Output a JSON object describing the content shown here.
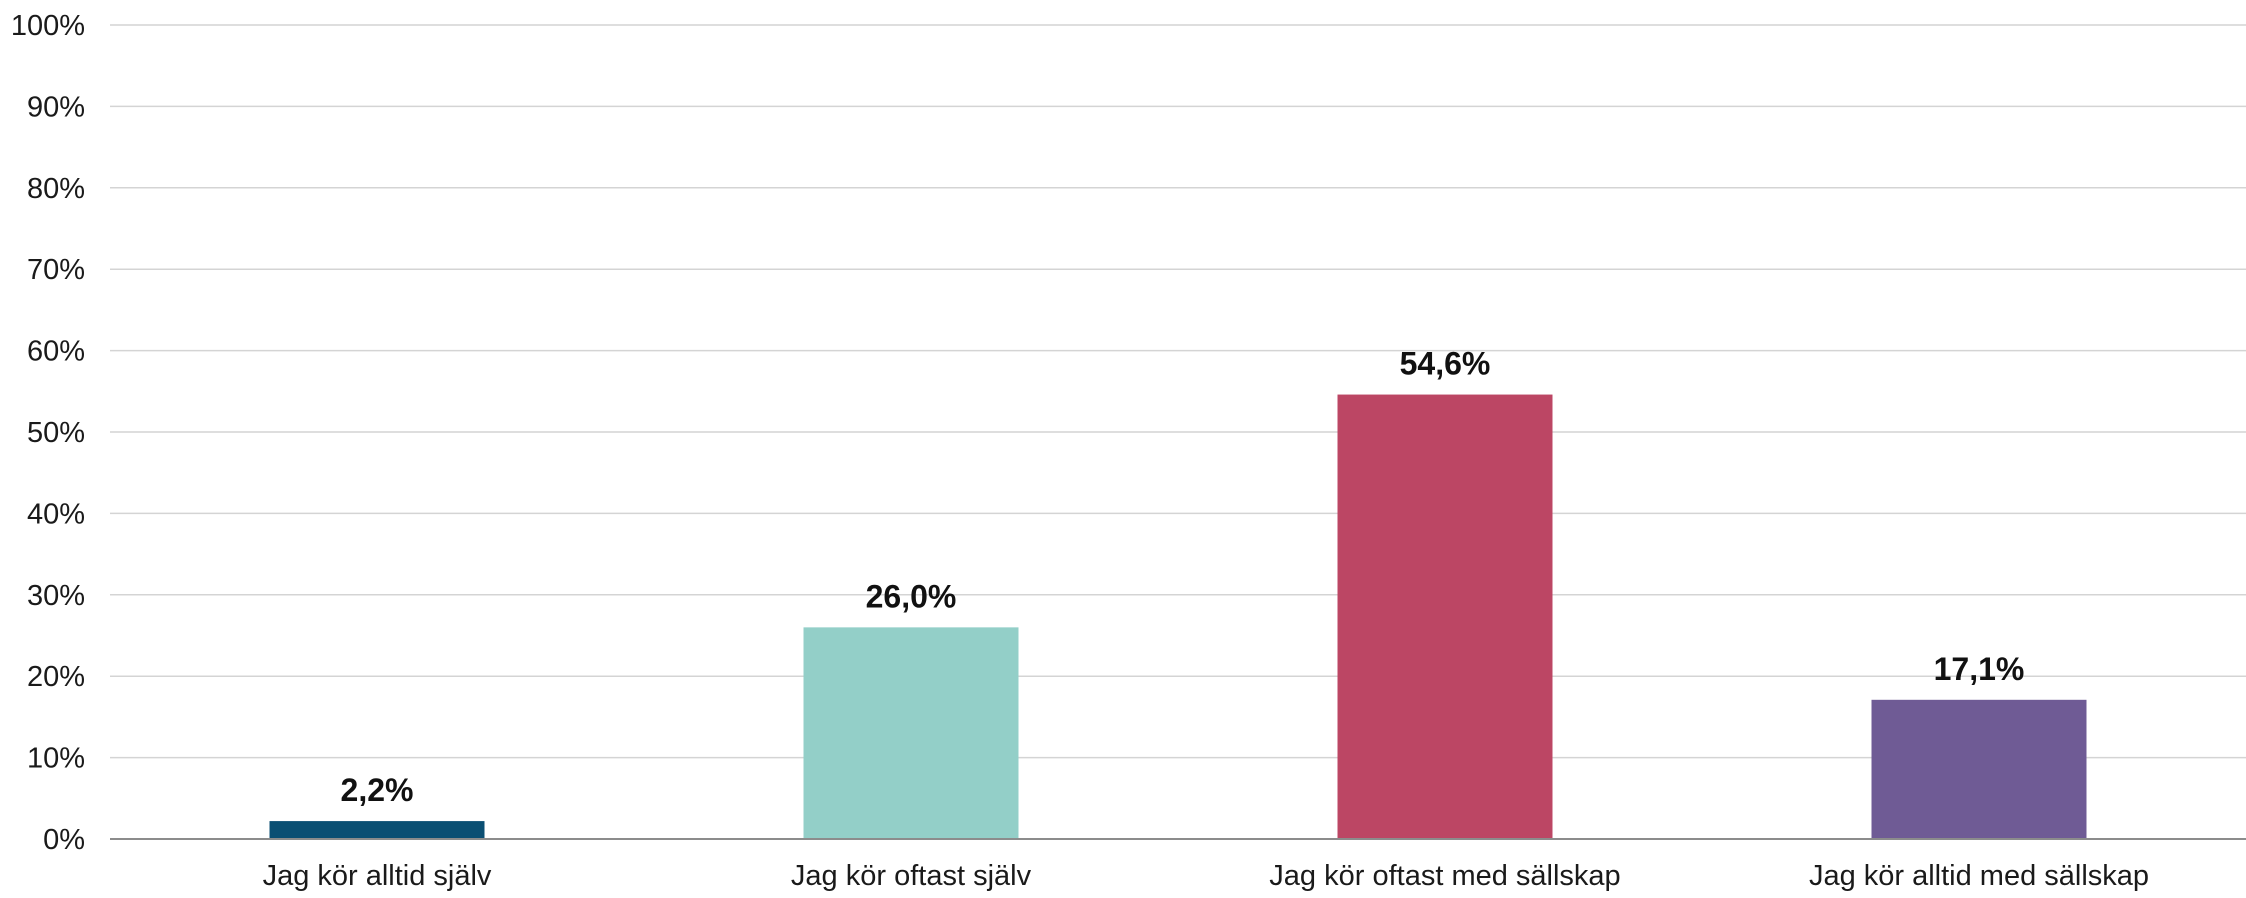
{
  "chart_data": {
    "type": "bar",
    "title": "",
    "xlabel": "",
    "ylabel": "",
    "categories": [
      "Jag kör alltid själv",
      "Jag kör oftast själv",
      "Jag kör oftast med sällskap",
      "Jag kör alltid med sällskap"
    ],
    "values": [
      2.2,
      26.0,
      54.6,
      17.1
    ],
    "value_labels": [
      "2,2%",
      "26,0%",
      "54,6%",
      "17,1%"
    ],
    "colors": [
      "#0b4f73",
      "#93cfc8",
      "#bc4664",
      "#6f5b95"
    ],
    "ylim": [
      0,
      100
    ],
    "y_ticks": [
      0,
      10,
      20,
      30,
      40,
      50,
      60,
      70,
      80,
      90,
      100
    ],
    "y_tick_labels": [
      "0%",
      "10%",
      "20%",
      "30%",
      "40%",
      "50%",
      "60%",
      "70%",
      "80%",
      "90%",
      "100%"
    ],
    "grid": true,
    "legend": "none"
  }
}
